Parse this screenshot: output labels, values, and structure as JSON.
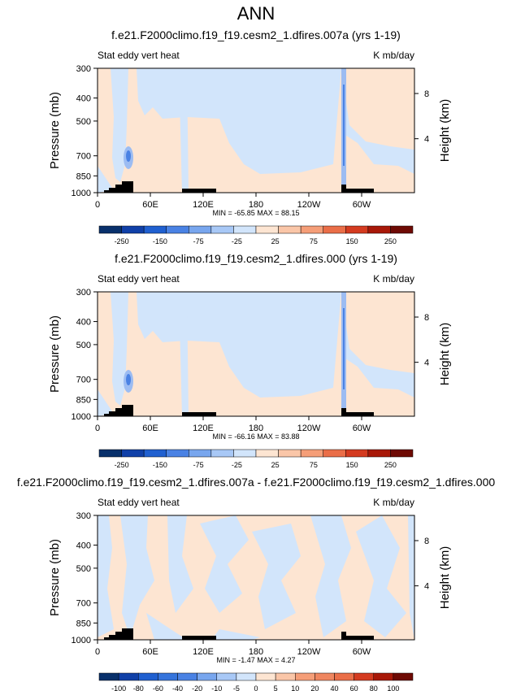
{
  "page": {
    "main_title": "ANN"
  },
  "axis_common": {
    "left_label": "Pressure (mb)",
    "right_label": "Height (km)",
    "field_left": "Stat eddy vert heat",
    "field_right": "K mb/day",
    "pressure_ticks": [
      "300",
      "400",
      "500",
      "700",
      "850",
      "1000"
    ],
    "lon_ticks": [
      "0",
      "60E",
      "120E",
      "180",
      "120W",
      "60W"
    ],
    "height_ticks": [
      "8",
      "4"
    ]
  },
  "chart_data": [
    {
      "type": "heatmap",
      "title": "f.e21.F2000climo.f19_f19.cesm2_1.dfires.007a (yrs 1-19)",
      "xlabel": "",
      "ylabel": "Pressure (mb)",
      "y2label": "Height (km)",
      "xlim": [
        0,
        360
      ],
      "ylim": [
        1000,
        300
      ],
      "y_scale": "log",
      "stats_label": "MIN = -65.85  MAX = 88.15",
      "min": -65.85,
      "max": 88.15,
      "colorbar": [
        "-250",
        "-150",
        "-75",
        "-25",
        "25",
        "75",
        "150",
        "250"
      ],
      "colors": [
        "#08306b",
        "#1040a8",
        "#2060d0",
        "#4a82e4",
        "#78a6ee",
        "#a8c8f6",
        "#d2e5fb",
        "#fde5d2",
        "#fac6a8",
        "#f59e78",
        "#ea6e48",
        "#d43b20",
        "#a81808",
        "#6e0a04"
      ]
    },
    {
      "type": "heatmap",
      "title": "f.e21.F2000climo.f19_f19.cesm2_1.dfires.000 (yrs 1-19)",
      "xlabel": "",
      "ylabel": "Pressure (mb)",
      "y2label": "Height (km)",
      "xlim": [
        0,
        360
      ],
      "ylim": [
        1000,
        300
      ],
      "y_scale": "log",
      "stats_label": "MIN = -66.16  MAX = 83.88",
      "min": -66.16,
      "max": 83.88,
      "colorbar": [
        "-250",
        "-150",
        "-75",
        "-25",
        "25",
        "75",
        "150",
        "250"
      ],
      "colors": [
        "#08306b",
        "#1040a8",
        "#2060d0",
        "#4a82e4",
        "#78a6ee",
        "#a8c8f6",
        "#d2e5fb",
        "#fde5d2",
        "#fac6a8",
        "#f59e78",
        "#ea6e48",
        "#d43b20",
        "#a81808",
        "#6e0a04"
      ]
    },
    {
      "type": "heatmap",
      "title": "f.e21.F2000climo.f19_f19.cesm2_1.dfires.007a - f.e21.F2000climo.f19_f19.cesm2_1.dfires.000",
      "xlabel": "",
      "ylabel": "Pressure (mb)",
      "y2label": "Height (km)",
      "xlim": [
        0,
        360
      ],
      "ylim": [
        1000,
        300
      ],
      "y_scale": "log",
      "stats_label": "MIN = -1.47  MAX = 4.27",
      "min": -1.47,
      "max": 4.27,
      "colorbar": [
        "-100",
        "-80",
        "-60",
        "-40",
        "-20",
        "-10",
        "-5",
        "0",
        "5",
        "10",
        "20",
        "40",
        "60",
        "80",
        "100"
      ],
      "colors": [
        "#08306b",
        "#1040a8",
        "#2060d0",
        "#3574dc",
        "#4a82e4",
        "#78a6ee",
        "#a8c8f6",
        "#d2e5fb",
        "#fde5d2",
        "#fac6a8",
        "#f59e78",
        "#ef8660",
        "#ea6e48",
        "#d43b20",
        "#a81808",
        "#6e0a04"
      ]
    }
  ]
}
